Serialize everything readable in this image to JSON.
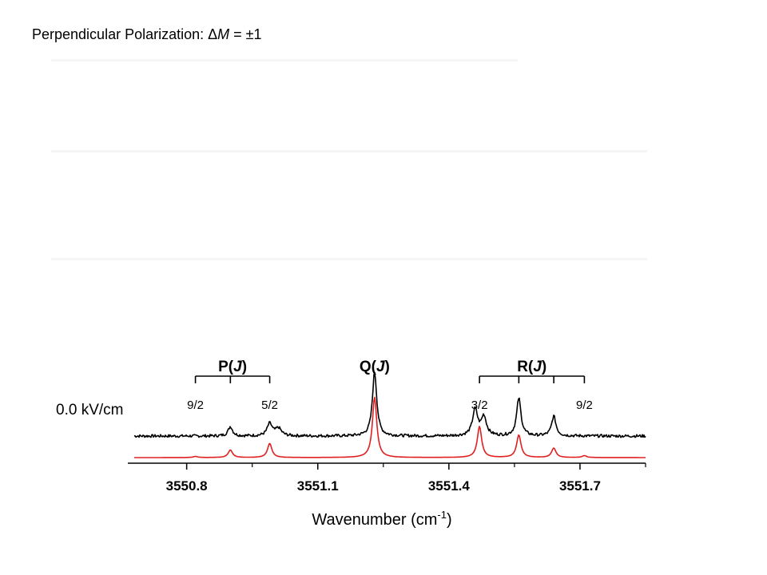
{
  "slide_title": {
    "prefix": "Perpendicular Polarization: ",
    "delta": "Δ",
    "variable": "M",
    "suffix": " = ±1"
  },
  "chart_data": {
    "type": "line",
    "title": "",
    "xlabel": "Wavenumber (cm",
    "xlabel_superscript": "-1",
    "xlabel_close": ")",
    "ylabel": "",
    "xlim": [
      3550.68,
      3551.85
    ],
    "xticks": [
      3550.8,
      3551.1,
      3551.4,
      3551.7
    ],
    "xtick_labels": [
      "3550.8",
      "3551.1",
      "3551.4",
      "3551.7"
    ],
    "xminor_ticks": [
      3550.95,
      3551.25,
      3551.55,
      3551.85
    ],
    "grid": false,
    "trace_label": "0.0 kV/cm",
    "series": [
      {
        "role": "experiment",
        "color": "#000000",
        "baseline": 0.2,
        "noise": 0.03,
        "peaks": [
          {
            "x": 3550.9,
            "height": 0.1,
            "width": 0.006
          },
          {
            "x": 3550.99,
            "height": 0.13,
            "width": 0.007
          },
          {
            "x": 3551.01,
            "height": 0.08,
            "width": 0.008
          },
          {
            "x": 3551.23,
            "height": 0.68,
            "width": 0.006
          },
          {
            "x": 3551.46,
            "height": 0.28,
            "width": 0.007
          },
          {
            "x": 3551.48,
            "height": 0.2,
            "width": 0.007
          },
          {
            "x": 3551.56,
            "height": 0.4,
            "width": 0.006
          },
          {
            "x": 3551.64,
            "height": 0.21,
            "width": 0.006
          }
        ]
      },
      {
        "role": "simulation",
        "color": "#e02020",
        "baseline": 0.0,
        "noise": 0,
        "peaks": [
          {
            "x": 3550.82,
            "height": 0.012,
            "width": 0.006
          },
          {
            "x": 3550.9,
            "height": 0.08,
            "width": 0.006
          },
          {
            "x": 3550.99,
            "height": 0.15,
            "width": 0.006
          },
          {
            "x": 3551.23,
            "height": 0.64,
            "width": 0.006
          },
          {
            "x": 3551.47,
            "height": 0.33,
            "width": 0.006
          },
          {
            "x": 3551.56,
            "height": 0.24,
            "width": 0.006
          },
          {
            "x": 3551.64,
            "height": 0.1,
            "width": 0.006
          },
          {
            "x": 3551.71,
            "height": 0.02,
            "width": 0.006
          }
        ]
      }
    ],
    "branches": [
      {
        "name": "P(J)",
        "letter": "P",
        "paren_open": "(",
        "symbol": "J",
        "paren_close": ")",
        "x_start": 3550.82,
        "x_end": 3550.99,
        "ticks": [
          3550.82,
          3550.9,
          3550.99
        ]
      },
      {
        "name": "Q(J)",
        "letter": "Q",
        "paren_open": "(",
        "symbol": "J",
        "paren_close": ")",
        "x_start": 3551.23,
        "x_end": 3551.23,
        "ticks": []
      },
      {
        "name": "R(J)",
        "letter": "R",
        "paren_open": "(",
        "symbol": "J",
        "paren_close": ")",
        "x_start": 3551.47,
        "x_end": 3551.71,
        "ticks": [
          3551.47,
          3551.56,
          3551.64,
          3551.71
        ]
      }
    ],
    "j_labels": [
      {
        "text": "9/2",
        "x": 3550.82
      },
      {
        "text": "5/2",
        "x": 3550.99
      },
      {
        "text": "3/2",
        "x": 3551.47
      },
      {
        "text": "9/2",
        "x": 3551.71
      }
    ]
  }
}
